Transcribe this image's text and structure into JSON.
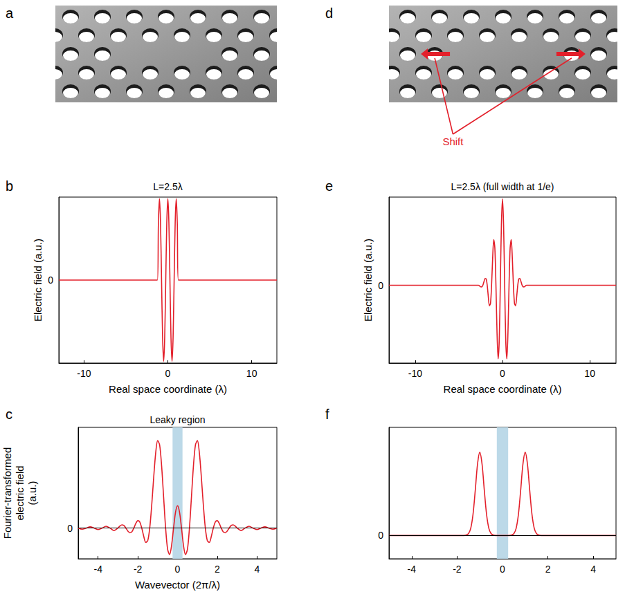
{
  "chart_data": [
    {
      "panel": "b",
      "type": "line",
      "title": "L=2.5λ",
      "xlabel": "Real space coordinate (λ)",
      "ylabel": "Electric field (a.u.)",
      "x": [
        -13,
        -1.25,
        -1.125,
        -1,
        -0.875,
        -0.75,
        -0.625,
        -0.5,
        -0.375,
        -0.25,
        -0.125,
        0,
        0.125,
        0.25,
        0.375,
        0.5,
        0.625,
        0.75,
        0.875,
        1,
        1.125,
        1.25,
        13
      ],
      "values": [
        0,
        0,
        0.707,
        1,
        0.707,
        0,
        -0.707,
        -1,
        -0.707,
        0,
        0.707,
        1,
        0.707,
        0,
        -0.707,
        -1,
        -0.707,
        0,
        0.707,
        1,
        0.707,
        0,
        0
      ],
      "color": "#e3202b",
      "xlim": [
        -13,
        13
      ],
      "xticks": [
        -10,
        0,
        10
      ],
      "ylim": [
        -1.02,
        1.02
      ],
      "yticks": [
        0
      ],
      "grid": false
    },
    {
      "panel": "c",
      "type": "line",
      "xlabel": "Wavevector (2π/λ)",
      "ylabel": "Fourier-transformed electric field (a.u.)",
      "x": [
        -5,
        -4.8,
        -4.6,
        -4.4,
        -4.2,
        -4,
        -3.8,
        -3.6,
        -3.4,
        -3.2,
        -3,
        -2.9,
        -2.8,
        -2.7,
        -2.6,
        -2.5,
        -2.4,
        -2.3,
        -2.2,
        -2.1,
        -2,
        -1.9,
        -1.8,
        -1.7,
        -1.6,
        -1.5,
        -1.4,
        -1.3,
        -1.2,
        -1.1,
        -1,
        -0.9,
        -0.8,
        -0.7,
        -0.6,
        -0.5,
        -0.4,
        -0.3,
        -0.2,
        -0.1,
        0,
        0.1,
        0.2,
        0.3,
        0.4,
        0.5,
        0.6,
        0.7,
        0.8,
        0.9,
        1,
        1.1,
        1.2,
        1.3,
        1.4,
        1.5,
        1.6,
        1.7,
        1.8,
        1.9,
        2,
        2.1,
        2.2,
        2.3,
        2.4,
        2.5,
        2.6,
        2.7,
        2.8,
        2.9,
        3,
        3.2,
        3.4,
        3.6,
        3.8,
        4,
        4.2,
        4.4,
        4.6,
        4.8,
        5
      ],
      "values": [
        0,
        -0.012,
        0,
        0.014,
        0,
        -0.017,
        0,
        0.021,
        0,
        -0.028,
        0,
        0.024,
        0.037,
        0.029,
        0,
        -0.034,
        -0.054,
        -0.042,
        0,
        0.053,
        0.085,
        0.069,
        0,
        -0.095,
        -0.163,
        -0.144,
        0,
        0.261,
        0.579,
        0.857,
        1,
        0.948,
        0.707,
        0.353,
        0,
        -0.24,
        -0.303,
        -0.198,
        0,
        0.182,
        0.255,
        0.182,
        0,
        -0.198,
        -0.303,
        -0.24,
        0,
        0.353,
        0.707,
        0.948,
        1,
        0.857,
        0.579,
        0.261,
        0,
        -0.144,
        -0.163,
        -0.095,
        0,
        0.069,
        0.085,
        0.053,
        0,
        -0.042,
        -0.054,
        -0.034,
        0,
        0.029,
        0.037,
        0.024,
        0,
        -0.028,
        0,
        0.021,
        0,
        -0.017,
        0,
        0.014,
        0,
        -0.012,
        0
      ],
      "color": "#e3202b",
      "xlim": [
        -5,
        5
      ],
      "xticks": [
        -4,
        -2,
        0,
        2,
        4
      ],
      "ylim": [
        -0.35,
        1.15
      ],
      "yticks": [
        0
      ],
      "grid": true,
      "shaded_region": {
        "x": [
          -0.25,
          0.25
        ],
        "label": "Leaky region"
      }
    },
    {
      "panel": "e",
      "type": "line",
      "title": "L=2.5λ (full width at 1/e)",
      "xlabel": "Real space coordinate (λ)",
      "ylabel": "Electric field (a.u.)",
      "x": [
        -13,
        -2.75,
        -2.625,
        -2.5,
        -2.375,
        -2.25,
        -2.125,
        -2,
        -1.875,
        -1.75,
        -1.625,
        -1.5,
        -1.375,
        -1.25,
        -1.125,
        -1,
        -0.875,
        -0.75,
        -0.625,
        -0.5,
        -0.375,
        -0.25,
        -0.125,
        0,
        0.125,
        0.25,
        0.375,
        0.5,
        0.625,
        0.75,
        0.875,
        1,
        1.125,
        1.25,
        1.375,
        1.5,
        1.625,
        1.75,
        1.875,
        2,
        2.125,
        2.25,
        2.375,
        2.5,
        2.625,
        2.75,
        13
      ],
      "values": [
        0,
        0,
        -0.008,
        -0.018,
        -0.019,
        0,
        0.04,
        0.077,
        0.074,
        0,
        -0.131,
        -0.237,
        -0.211,
        0,
        0.315,
        0.527,
        0.433,
        0,
        -0.551,
        -0.852,
        -0.646,
        0,
        0.7,
        1,
        0.7,
        0,
        -0.646,
        -0.852,
        -0.551,
        0,
        0.433,
        0.527,
        0.315,
        0,
        -0.211,
        -0.237,
        -0.131,
        0,
        0.074,
        0.077,
        0.04,
        0,
        -0.019,
        -0.018,
        -0.008,
        0,
        0
      ],
      "color": "#e3202b",
      "xlim": [
        -13,
        13
      ],
      "xticks": [
        -10,
        0,
        10
      ],
      "ylim": [
        -0.9,
        1.02
      ],
      "yticks": [
        0
      ],
      "grid": false
    },
    {
      "panel": "f",
      "type": "line",
      "x": [
        -5,
        -1.7,
        -1.6,
        -1.5,
        -1.4,
        -1.3,
        -1.2,
        -1.1,
        -1,
        -0.9,
        -0.8,
        -0.7,
        -0.6,
        -0.5,
        -0.4,
        -0.3,
        0.3,
        0.4,
        0.5,
        0.6,
        0.7,
        0.8,
        0.9,
        1,
        1.1,
        1.2,
        1.3,
        1.4,
        1.5,
        1.6,
        1.7,
        5
      ],
      "values": [
        0,
        0,
        0.004,
        0.021,
        0.085,
        0.25,
        0.54,
        0.857,
        1,
        0.857,
        0.54,
        0.25,
        0.085,
        0.021,
        0.004,
        0,
        0,
        0.004,
        0.021,
        0.085,
        0.25,
        0.54,
        0.857,
        1,
        0.857,
        0.54,
        0.25,
        0.085,
        0.021,
        0.004,
        0,
        0
      ],
      "color": "#e3202b",
      "xlim": [
        -5,
        5
      ],
      "xticks": [
        -4,
        -2,
        0,
        2,
        4
      ],
      "ylim": [
        -0.28,
        1.3
      ],
      "yticks": [
        0
      ],
      "grid": true,
      "shaded_region": {
        "x": [
          -0.25,
          0.25
        ]
      }
    }
  ],
  "diagrams": [
    {
      "panel": "a"
    },
    {
      "panel": "d",
      "annotation": "Shift"
    }
  ]
}
